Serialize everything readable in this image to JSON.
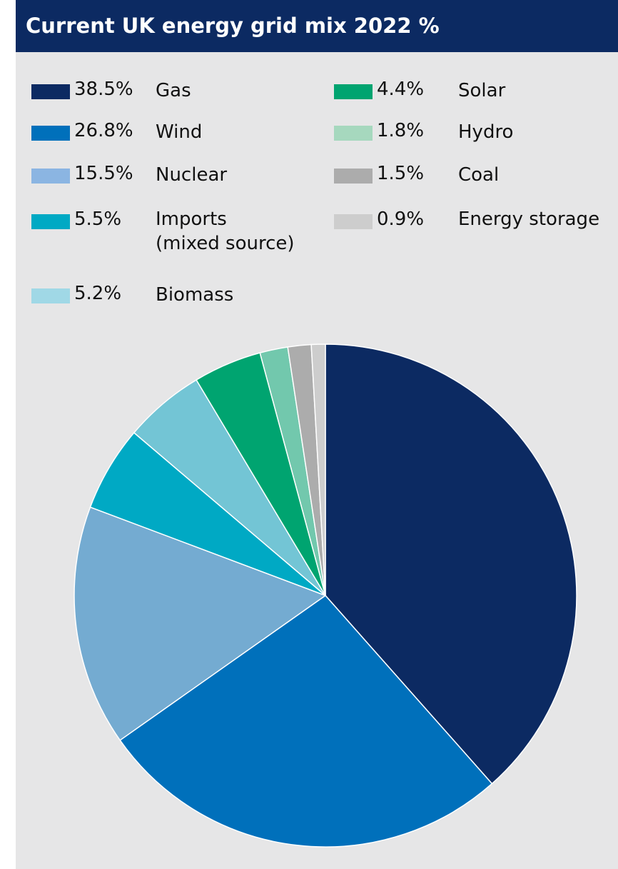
{
  "chart_data": {
    "type": "pie",
    "title": "Current UK energy grid mix 2022 %",
    "legend_position": "top",
    "slices": [
      {
        "label": "Gas",
        "value": 38.5,
        "value_label": "38.5%",
        "color": "#0c2a62"
      },
      {
        "label": "Wind",
        "value": 26.8,
        "value_label": "26.8%",
        "color": "#0070bb"
      },
      {
        "label": "Nuclear",
        "value": 15.5,
        "value_label": "15.5%",
        "color": "#74abd1"
      },
      {
        "label": "Imports\n(mixed source)",
        "value": 5.5,
        "value_label": "5.5%",
        "color": "#00a9c4"
      },
      {
        "label": "Biomass",
        "value": 5.2,
        "value_label": "5.2%",
        "color": "#73c5d5"
      },
      {
        "label": "Solar",
        "value": 4.4,
        "value_label": "4.4%",
        "color": "#00a470"
      },
      {
        "label": "Hydro",
        "value": 1.8,
        "value_label": "1.8%",
        "color": "#72c8ad"
      },
      {
        "label": "Coal",
        "value": 1.5,
        "value_label": "1.5%",
        "color": "#acacac"
      },
      {
        "label": "Energy storage",
        "value": 0.9,
        "value_label": "0.9%",
        "color": "#cdcdcd"
      }
    ],
    "legend_swatch_colors": [
      "#0c2a62",
      "#0070bb",
      "#8bb5e2",
      "#00a9c4",
      "#a0d8e6",
      "#00a470",
      "#a6d8be",
      "#acacac",
      "#cdcdcd"
    ]
  }
}
